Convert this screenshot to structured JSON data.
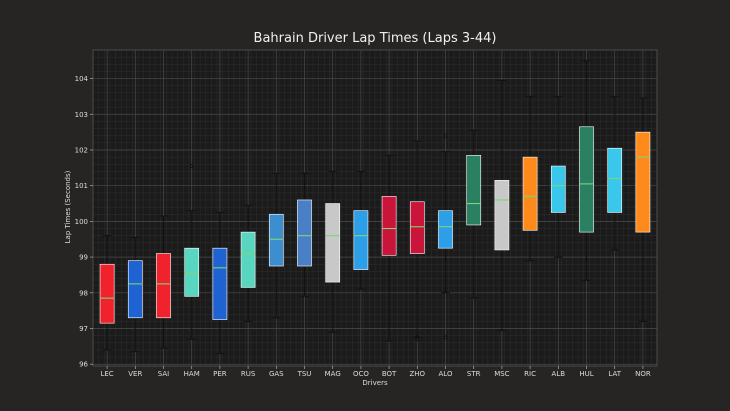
{
  "chart_data": {
    "type": "box",
    "title": "Bahrain Driver Lap Times (Laps 3-44)",
    "xlabel": "Drivers",
    "ylabel": "Lap Times (Seconds)",
    "ylim": [
      95.95,
      104.8
    ],
    "yticks": [
      96,
      97,
      98,
      99,
      100,
      101,
      102,
      103,
      104
    ],
    "grid": true,
    "categories": [
      "LEC",
      "VER",
      "SAI",
      "HAM",
      "PER",
      "RUS",
      "GAS",
      "TSU",
      "MAG",
      "OCO",
      "BOT",
      "ZHO",
      "ALO",
      "STR",
      "MSC",
      "RIC",
      "ALB",
      "HUL",
      "LAT",
      "NOR"
    ],
    "boxes": [
      {
        "driver": "LEC",
        "whislo": 96.4,
        "q1": 97.15,
        "med": 97.85,
        "q3": 98.8,
        "whishi": 99.6,
        "fliers": [],
        "color": "#f0222b"
      },
      {
        "driver": "VER",
        "whislo": 96.35,
        "q1": 97.3,
        "med": 98.25,
        "q3": 98.9,
        "whishi": 99.55,
        "fliers": [],
        "color": "#1f63d3"
      },
      {
        "driver": "SAI",
        "whislo": 96.45,
        "q1": 97.3,
        "med": 98.25,
        "q3": 99.1,
        "whishi": 100.15,
        "fliers": [],
        "color": "#f0222b"
      },
      {
        "driver": "HAM",
        "whislo": 96.7,
        "q1": 97.9,
        "med": 98.55,
        "q3": 99.25,
        "whishi": 100.3,
        "fliers": [
          101.55
        ],
        "color": "#59d6c0"
      },
      {
        "driver": "PER",
        "whislo": 96.3,
        "q1": 97.25,
        "med": 98.7,
        "q3": 99.25,
        "whishi": 100.25,
        "fliers": [],
        "color": "#1f63d3"
      },
      {
        "driver": "RUS",
        "whislo": 97.2,
        "q1": 98.15,
        "med": 99.1,
        "q3": 99.7,
        "whishi": 100.45,
        "fliers": [],
        "color": "#59d6c0"
      },
      {
        "driver": "GAS",
        "whislo": 97.3,
        "q1": 98.75,
        "med": 99.5,
        "q3": 100.2,
        "whishi": 101.35,
        "fliers": [],
        "color": "#3d8ecf"
      },
      {
        "driver": "TSU",
        "whislo": 97.9,
        "q1": 98.75,
        "med": 99.6,
        "q3": 100.6,
        "whishi": 101.35,
        "fliers": [],
        "color": "#4a7fc6"
      },
      {
        "driver": "MAG",
        "whislo": 96.9,
        "q1": 98.3,
        "med": 99.6,
        "q3": 100.5,
        "whishi": 101.4,
        "fliers": [],
        "color": "#c8c8c8"
      },
      {
        "driver": "OCO",
        "whislo": 98.1,
        "q1": 98.65,
        "med": 99.6,
        "q3": 100.3,
        "whishi": 101.4,
        "fliers": [],
        "color": "#2d9fe8"
      },
      {
        "driver": "BOT",
        "whislo": 96.65,
        "q1": 99.05,
        "med": 99.8,
        "q3": 100.7,
        "whishi": 101.85,
        "fliers": [],
        "color": "#c9153a"
      },
      {
        "driver": "ZHO",
        "whislo": 96.75,
        "q1": 99.1,
        "med": 99.85,
        "q3": 100.55,
        "whishi": 102.25,
        "fliers": [
          96.7,
          96.75
        ],
        "color": "#c9153a"
      },
      {
        "driver": "ALO",
        "whislo": 98.0,
        "q1": 99.25,
        "med": 99.85,
        "q3": 100.3,
        "whishi": 101.95,
        "fliers": [
          102.4,
          96.75
        ],
        "color": "#2d9fe8"
      },
      {
        "driver": "STR",
        "whislo": 97.85,
        "q1": 99.9,
        "med": 100.5,
        "q3": 101.85,
        "whishi": 102.55,
        "fliers": [],
        "color": "#2a8162"
      },
      {
        "driver": "MSC",
        "whislo": 96.95,
        "q1": 99.2,
        "med": 100.6,
        "q3": 101.15,
        "whishi": 103.95,
        "fliers": [],
        "color": "#c8c8c8"
      },
      {
        "driver": "RIC",
        "whislo": 98.9,
        "q1": 99.75,
        "med": 100.7,
        "q3": 101.8,
        "whishi": 103.5,
        "fliers": [],
        "color": "#ff8a1c"
      },
      {
        "driver": "ALB",
        "whislo": 99.0,
        "q1": 100.25,
        "med": 101.0,
        "q3": 101.55,
        "whishi": 103.5,
        "fliers": [],
        "color": "#39c8ec"
      },
      {
        "driver": "HUL",
        "whislo": 98.35,
        "q1": 99.7,
        "med": 101.05,
        "q3": 102.65,
        "whishi": 104.5,
        "fliers": [],
        "color": "#2a8162"
      },
      {
        "driver": "LAT",
        "whislo": 99.2,
        "q1": 100.25,
        "med": 101.2,
        "q3": 102.05,
        "whishi": 103.5,
        "fliers": [],
        "color": "#39c8ec"
      },
      {
        "driver": "NOR",
        "whislo": 97.2,
        "q1": 99.7,
        "med": 101.8,
        "q3": 102.5,
        "whishi": 103.45,
        "fliers": [],
        "color": "#ff8a1c"
      }
    ]
  }
}
